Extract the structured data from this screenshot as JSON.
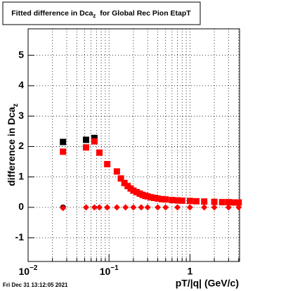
{
  "chart_data": {
    "type": "scatter",
    "title": "Fitted difference in Dca",
    "title_sub": "z",
    "title_rest": "  for Global Rec Pion EtapT",
    "y_label": "difference in Dca",
    "y_label_sub": "z",
    "x_label": "pT/|q| (GeV/c)",
    "footer": "Fri Dec 31 13:12:05 2021",
    "xlog": true,
    "grid": true,
    "xlim": [
      0.01,
      4.1
    ],
    "ylim": [
      -1.78,
      5.87
    ],
    "xticks": [
      {
        "value": 0.01,
        "label": "10",
        "exponent": "−2"
      },
      {
        "value": 0.1,
        "label": "10",
        "exponent": "−1"
      },
      1
    ],
    "xminor": [
      0.02,
      0.03,
      0.04,
      0.05,
      0.06,
      0.07,
      0.08,
      0.09,
      0.2,
      0.3,
      0.4,
      0.5,
      0.6,
      0.7,
      0.8,
      0.9,
      2,
      3,
      4
    ],
    "yticks": [
      -1,
      0,
      1,
      2,
      3,
      4,
      5
    ],
    "series": [
      {
        "color": "#000000",
        "marker": "square",
        "x": [
          0.027,
          0.052,
          0.066
        ],
        "values": [
          2.15,
          2.22,
          2.28
        ]
      },
      {
        "color": "#ff0000",
        "marker": "square",
        "x": [
          0.027,
          0.052,
          0.066,
          0.076,
          0.095,
          0.125,
          0.14,
          0.155,
          0.17,
          0.185,
          0.2,
          0.22,
          0.24,
          0.26,
          0.28,
          0.3,
          0.33,
          0.36,
          0.4,
          0.45,
          0.5,
          0.6,
          0.7,
          0.8,
          1.0,
          1.2,
          1.5,
          2.0,
          2.5,
          3.0,
          3.5,
          4.0
        ],
        "values": [
          1.83,
          1.97,
          2.17,
          1.8,
          1.42,
          1.18,
          0.95,
          0.8,
          0.7,
          0.62,
          0.55,
          0.5,
          0.45,
          0.41,
          0.38,
          0.36,
          0.33,
          0.31,
          0.29,
          0.27,
          0.26,
          0.24,
          0.23,
          0.22,
          0.21,
          0.2,
          0.19,
          0.18,
          0.17,
          0.17,
          0.16,
          0.16
        ]
      },
      {
        "color": "#000000",
        "marker": "circle",
        "x": [
          0.027
        ],
        "values": [
          0
        ]
      },
      {
        "color": "#ff0000",
        "marker": "diamond",
        "x": [
          0.027,
          0.052,
          0.066,
          0.076,
          0.095,
          0.125,
          0.16,
          0.2,
          0.25,
          0.3,
          0.4,
          0.5,
          0.7,
          1.0,
          1.5,
          2.0,
          3.0,
          4.0
        ],
        "values": [
          -0.02,
          0,
          0,
          0,
          0,
          0,
          0,
          0,
          0,
          0,
          0,
          0,
          0,
          0,
          0,
          0,
          0,
          0
        ]
      }
    ]
  }
}
